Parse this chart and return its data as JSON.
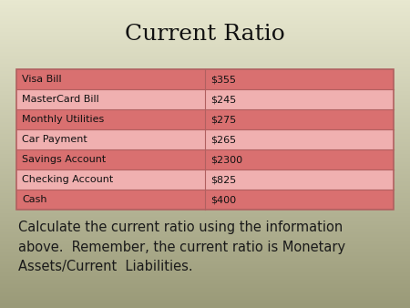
{
  "title": "Current Ratio",
  "title_fontsize": 18,
  "title_font": "serif",
  "bg_top_color": "#e8e8d0",
  "bg_bottom_color": "#9a9a78",
  "table_rows": [
    {
      "label": "Visa Bill",
      "value": "$355",
      "row_color": "#d97070"
    },
    {
      "label": "MasterCard Bill",
      "value": "$245",
      "row_color": "#f0b0b0"
    },
    {
      "label": "Monthly Utilities",
      "value": "$275",
      "row_color": "#d97070"
    },
    {
      "label": "Car Payment",
      "value": "$265",
      "row_color": "#f0b0b0"
    },
    {
      "label": "Savings Account",
      "value": "$2300",
      "row_color": "#d97070"
    },
    {
      "label": "Checking Account",
      "value": "$825",
      "row_color": "#f0b0b0"
    },
    {
      "label": "Cash",
      "value": "$400",
      "row_color": "#d97070"
    }
  ],
  "table_border_color": "#b06060",
  "table_text_color": "#111111",
  "table_fontsize": 8,
  "body_text": "Calculate the current ratio using the information\nabove.  Remember, the current ratio is Monetary\nAssets/Current  Liabilities.",
  "body_fontsize": 10.5,
  "body_font": "sans-serif",
  "body_text_color": "#1a1a1a",
  "fig_width": 4.5,
  "fig_height": 3.38,
  "dpi": 100
}
